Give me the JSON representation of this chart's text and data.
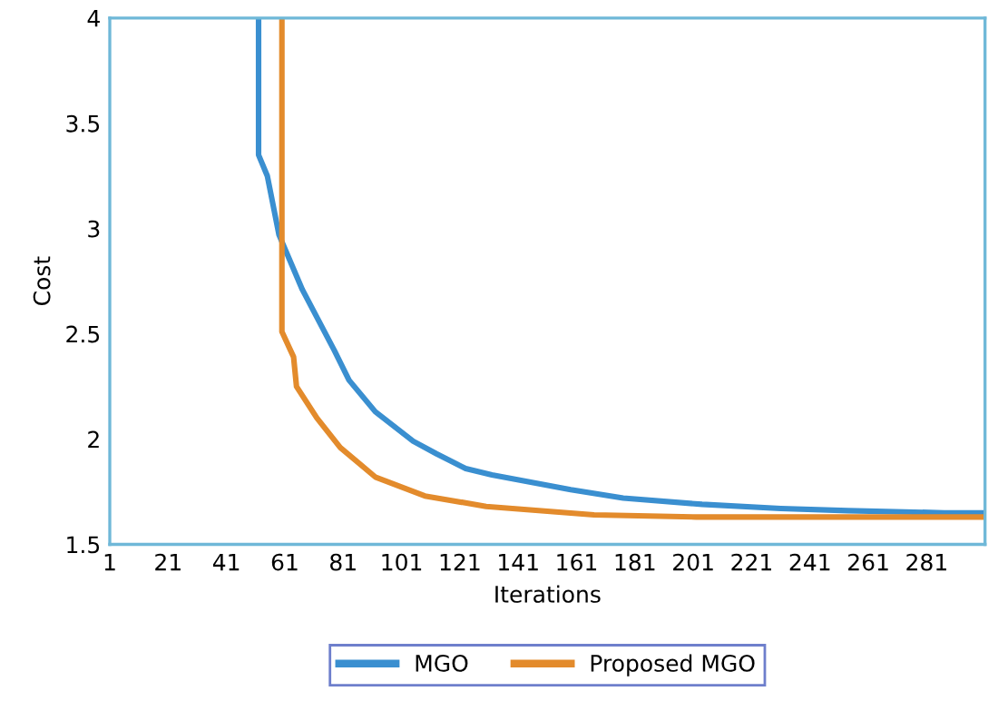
{
  "chart_data": {
    "type": "line",
    "xlabel": "Iterations",
    "ylabel": "Cost",
    "xlim": [
      1,
      301
    ],
    "xticks": [
      1,
      21,
      41,
      61,
      81,
      101,
      121,
      141,
      161,
      181,
      201,
      221,
      241,
      261,
      281
    ],
    "ylim": [
      1.5,
      4
    ],
    "yticks": [
      1.5,
      2,
      2.5,
      3,
      3.5,
      4
    ],
    "grid": false,
    "legend": "bottom",
    "marker": "none",
    "line_style": "solid",
    "series": [
      {
        "name": "MGO",
        "color": "#3a8fd0",
        "x": [
          52,
          52,
          55,
          59,
          67,
          78,
          83,
          92,
          105,
          113,
          123,
          132,
          159,
          177,
          204,
          231,
          254,
          287,
          301
        ],
        "values": [
          4,
          3.35,
          3.25,
          2.97,
          2.71,
          2.42,
          2.28,
          2.13,
          1.99,
          1.93,
          1.86,
          1.83,
          1.76,
          1.72,
          1.69,
          1.67,
          1.66,
          1.65,
          1.65
        ]
      },
      {
        "name": "Proposed MGO",
        "color": "#e38b2c",
        "x": [
          60,
          60,
          64,
          65,
          72,
          80,
          92,
          109,
          130,
          167,
          202,
          301
        ],
        "values": [
          4,
          2.51,
          2.39,
          2.25,
          2.1,
          1.96,
          1.82,
          1.73,
          1.68,
          1.64,
          1.63,
          1.63
        ]
      }
    ]
  }
}
